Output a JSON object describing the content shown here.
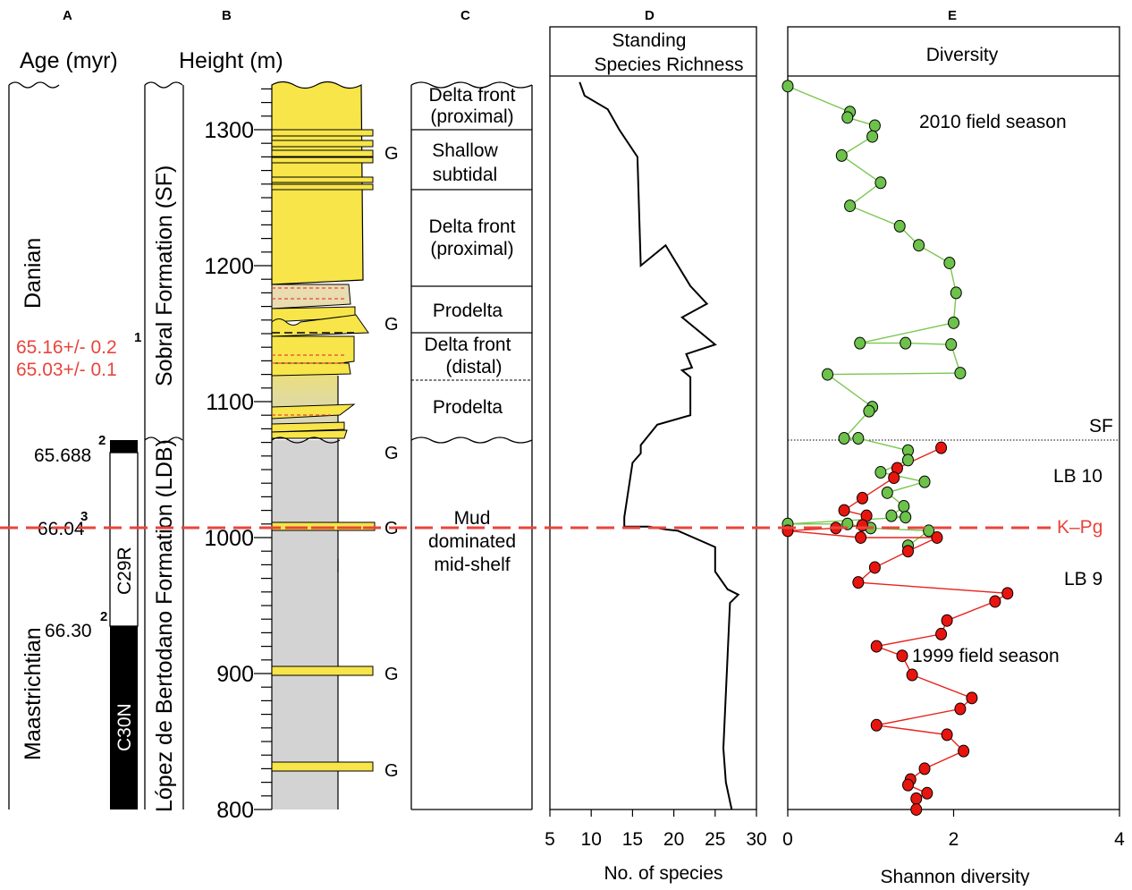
{
  "panels": {
    "a": {
      "letter": "A",
      "header": "Age (myr)",
      "stage_upper": "Danian",
      "stage_lower": "Maastrichtian",
      "date1": "65.16+/- 0.2",
      "date2": "65.03+/- 0.1",
      "date_ref": "1",
      "age1": "65.688",
      "age1_ref": "2",
      "age2": "66.04",
      "age2_ref": "3",
      "age3": "66.30",
      "age3_ref": "2",
      "chron1": "C29R",
      "chron2": "C30N"
    },
    "b": {
      "letter": "B",
      "header": "Height (m)",
      "formation_upper": "Sobral Formation (SF)",
      "formation_lower": "López de Bertodano Formation (LDB)",
      "ticks": [
        "1300",
        "1200",
        "1100",
        "1000",
        "900",
        "800"
      ],
      "glauconite": "G"
    },
    "c": {
      "letter": "C",
      "environments": [
        {
          "l1": "Delta front",
          "l2": "(proximal)"
        },
        {
          "l1": "Shallow",
          "l2": "subtidal"
        },
        {
          "l1": "Delta front",
          "l2": "(proximal)"
        },
        {
          "l1": "Prodelta",
          "l2": ""
        },
        {
          "l1": "Delta front",
          "l2": "(distal)"
        },
        {
          "l1": "Prodelta",
          "l2": ""
        },
        {
          "l1": "Mud",
          "l2": "dominated",
          "l3": "mid-shelf"
        }
      ]
    },
    "d": {
      "letter": "D",
      "title_l1": "Standing",
      "title_l2": "Species Richness",
      "xlabel": "No. of species"
    },
    "e": {
      "letter": "E",
      "title": "Diversity",
      "xlabel": "Shannon diversity",
      "label_2010": "2010 field season",
      "label_1999": "1999 field season",
      "label_sf": "SF",
      "label_lb10": "LB 10",
      "label_kpg": "K–Pg",
      "label_lb9": "LB 9"
    }
  },
  "colors": {
    "kpg": "#e8453c",
    "season_2010": "#7ac74f",
    "season_1999": "#e8221c",
    "sandstone": "#f7e54a",
    "mudstone": "#d3d3d3"
  },
  "chart_data": [
    {
      "type": "line",
      "title": "Standing Species Richness",
      "xlabel": "No. of species",
      "ylabel": "Height (m)",
      "xlim": [
        5,
        30
      ],
      "ylim": [
        800,
        1340
      ],
      "xticks": [
        5,
        10,
        15,
        20,
        25,
        30
      ],
      "series": [
        {
          "points": [
            [
              8.6,
              1335
            ],
            [
              9.2,
              1325
            ],
            [
              12,
              1315
            ],
            [
              13.4,
              1300
            ],
            [
              15.6,
              1280
            ],
            [
              16,
              1200
            ],
            [
              19,
              1215
            ],
            [
              22,
              1185
            ],
            [
              24,
              1172
            ],
            [
              21,
              1162
            ],
            [
              23,
              1152
            ],
            [
              25,
              1142
            ],
            [
              21.5,
              1135
            ],
            [
              22.2,
              1125
            ],
            [
              21,
              1123
            ],
            [
              22,
              1118
            ],
            [
              22,
              1090
            ],
            [
              18,
              1083
            ],
            [
              16,
              1068
            ],
            [
              16,
              1062
            ],
            [
              15,
              1055
            ],
            [
              14,
              1015
            ],
            [
              14,
              1008
            ],
            [
              17,
              1008
            ],
            [
              19,
              1006
            ],
            [
              20.5,
              1005
            ],
            [
              25,
              993
            ],
            [
              25,
              975
            ],
            [
              26.5,
              962
            ],
            [
              27.8,
              958
            ],
            [
              26.8,
              952
            ],
            [
              26,
              845
            ],
            [
              26.3,
              820
            ],
            [
              27,
              800
            ]
          ]
        }
      ]
    },
    {
      "type": "scatter",
      "title": "Diversity",
      "xlabel": "Shannon diversity",
      "ylabel": "Height (m)",
      "xlim": [
        0,
        4
      ],
      "ylim": [
        800,
        1340
      ],
      "xticks": [
        0,
        2,
        4
      ],
      "series": [
        {
          "name": "2010 field season",
          "points": [
            [
              0,
              1332
            ],
            [
              0.75,
              1313
            ],
            [
              0.72,
              1309
            ],
            [
              1.05,
              1303
            ],
            [
              1.02,
              1295
            ],
            [
              0.65,
              1281
            ],
            [
              1.12,
              1261
            ],
            [
              0.75,
              1244
            ],
            [
              1.35,
              1229
            ],
            [
              1.58,
              1215
            ],
            [
              1.95,
              1202
            ],
            [
              2.03,
              1180
            ],
            [
              2.0,
              1158
            ],
            [
              0.87,
              1143
            ],
            [
              1.42,
              1143
            ],
            [
              1.97,
              1142
            ],
            [
              2.08,
              1121
            ],
            [
              0.48,
              1120
            ],
            [
              1.02,
              1096
            ],
            [
              0.98,
              1093
            ],
            [
              0.68,
              1073
            ],
            [
              0.85,
              1073
            ],
            [
              1.45,
              1064
            ],
            [
              1.45,
              1057
            ],
            [
              1.12,
              1048
            ],
            [
              1.65,
              1041
            ],
            [
              1.2,
              1033
            ],
            [
              1.4,
              1023
            ],
            [
              1.25,
              1016
            ],
            [
              1.42,
              1015
            ],
            [
              0,
              1010
            ],
            [
              0.72,
              1010
            ],
            [
              1.0,
              1007
            ],
            [
              1.7,
              1005
            ],
            [
              1.45,
              994
            ]
          ]
        },
        {
          "name": "1999 field season",
          "points": [
            [
              1.85,
              1066
            ],
            [
              1.32,
              1051
            ],
            [
              1.28,
              1044
            ],
            [
              0.9,
              1029
            ],
            [
              0.68,
              1020
            ],
            [
              0.95,
              1016
            ],
            [
              0.9,
              1009
            ],
            [
              0.58,
              1007
            ],
            [
              0,
              1005
            ],
            [
              0.88,
              1000
            ],
            [
              1.8,
              1000
            ],
            [
              1.45,
              990
            ],
            [
              1.05,
              978
            ],
            [
              0.85,
              967
            ],
            [
              2.65,
              959
            ],
            [
              2.5,
              953
            ],
            [
              1.92,
              939
            ],
            [
              1.85,
              929
            ],
            [
              1.07,
              920
            ],
            [
              1.38,
              913
            ],
            [
              1.5,
              899
            ],
            [
              2.22,
              882
            ],
            [
              2.08,
              874
            ],
            [
              1.07,
              862
            ],
            [
              1.92,
              855
            ],
            [
              2.12,
              843
            ],
            [
              1.65,
              830
            ],
            [
              1.48,
              822
            ],
            [
              1.45,
              818
            ],
            [
              1.68,
              812
            ],
            [
              1.55,
              808
            ],
            [
              1.55,
              800
            ]
          ]
        }
      ]
    }
  ]
}
